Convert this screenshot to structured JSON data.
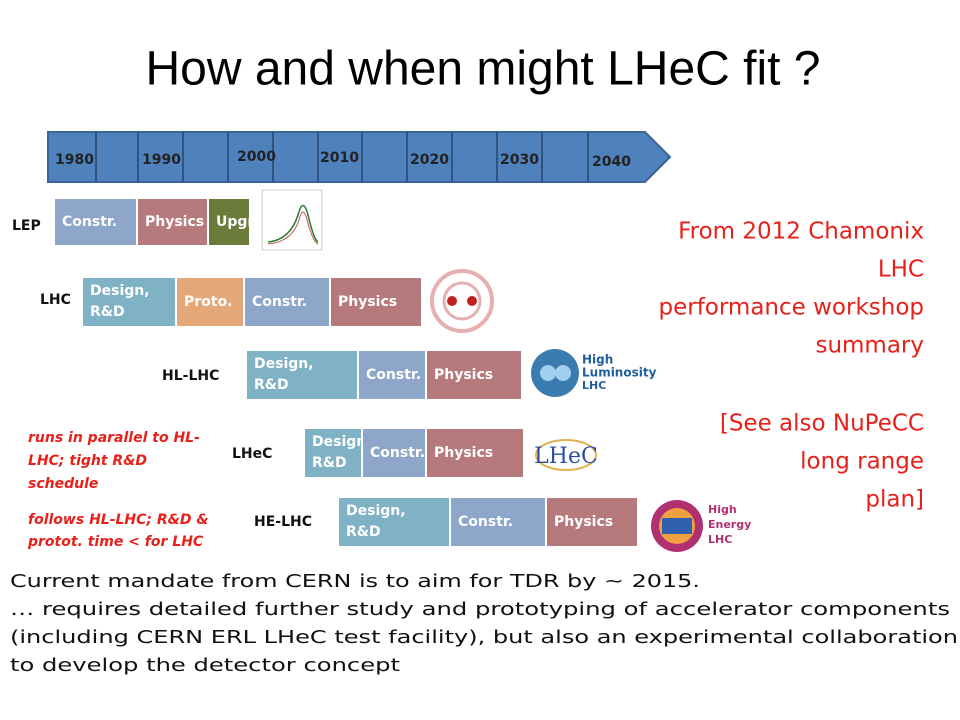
{
  "title": "How and when might LHeC fit ?",
  "timeline": {
    "years": [
      "1980",
      "1990",
      "2000",
      "2010",
      "2020",
      "2030",
      "2040"
    ]
  },
  "rows": [
    {
      "label": "LEP",
      "segments": [
        {
          "lines": [
            "Constr."
          ]
        },
        {
          "lines": [
            "Physics"
          ]
        },
        {
          "lines": [
            "Upgr."
          ]
        }
      ]
    },
    {
      "label": "LHC",
      "segments": [
        {
          "lines": [
            "Design,",
            "R&D"
          ]
        },
        {
          "lines": [
            "Proto."
          ]
        },
        {
          "lines": [
            "Constr."
          ]
        },
        {
          "lines": [
            "Physics"
          ]
        }
      ]
    },
    {
      "label": "HL-LHC",
      "segments": [
        {
          "lines": [
            "Design,",
            "R&D"
          ]
        },
        {
          "lines": [
            "Constr."
          ]
        },
        {
          "lines": [
            "Physics"
          ]
        }
      ]
    },
    {
      "label": "LHeC",
      "segments": [
        {
          "lines": [
            "Design,",
            "R&D"
          ]
        },
        {
          "lines": [
            "Constr."
          ]
        },
        {
          "lines": [
            "Physics"
          ]
        }
      ]
    },
    {
      "label": "HE-LHC",
      "segments": [
        {
          "lines": [
            "Design,",
            "R&D"
          ]
        },
        {
          "lines": [
            "Constr."
          ]
        },
        {
          "lines": [
            "Physics"
          ]
        }
      ]
    }
  ],
  "logos": {
    "hl_lhc": [
      "High",
      "Luminosity",
      "LHC"
    ],
    "lhec": "LHeC",
    "he_lhc": [
      "High",
      "Energy",
      "LHC"
    ]
  },
  "notes": [
    [
      "runs in parallel to HL-",
      "LHC; tight R&D",
      "schedule"
    ],
    [
      "follows HL-LHC; R&D &",
      "protot. time < for LHC"
    ]
  ],
  "source": [
    "From 2012 Chamonix",
    "LHC",
    "performance workshop",
    "summary",
    "[See also NuPeCC",
    "long range",
    "plan]"
  ],
  "body": [
    "Current mandate from CERN is to aim for TDR by ~ 2015.",
    "… requires detailed further study and prototyping of accelerator components",
    "(including CERN ERL LHeC test facility), but also an experimental collaboration",
    "to develop the detector concept"
  ]
}
